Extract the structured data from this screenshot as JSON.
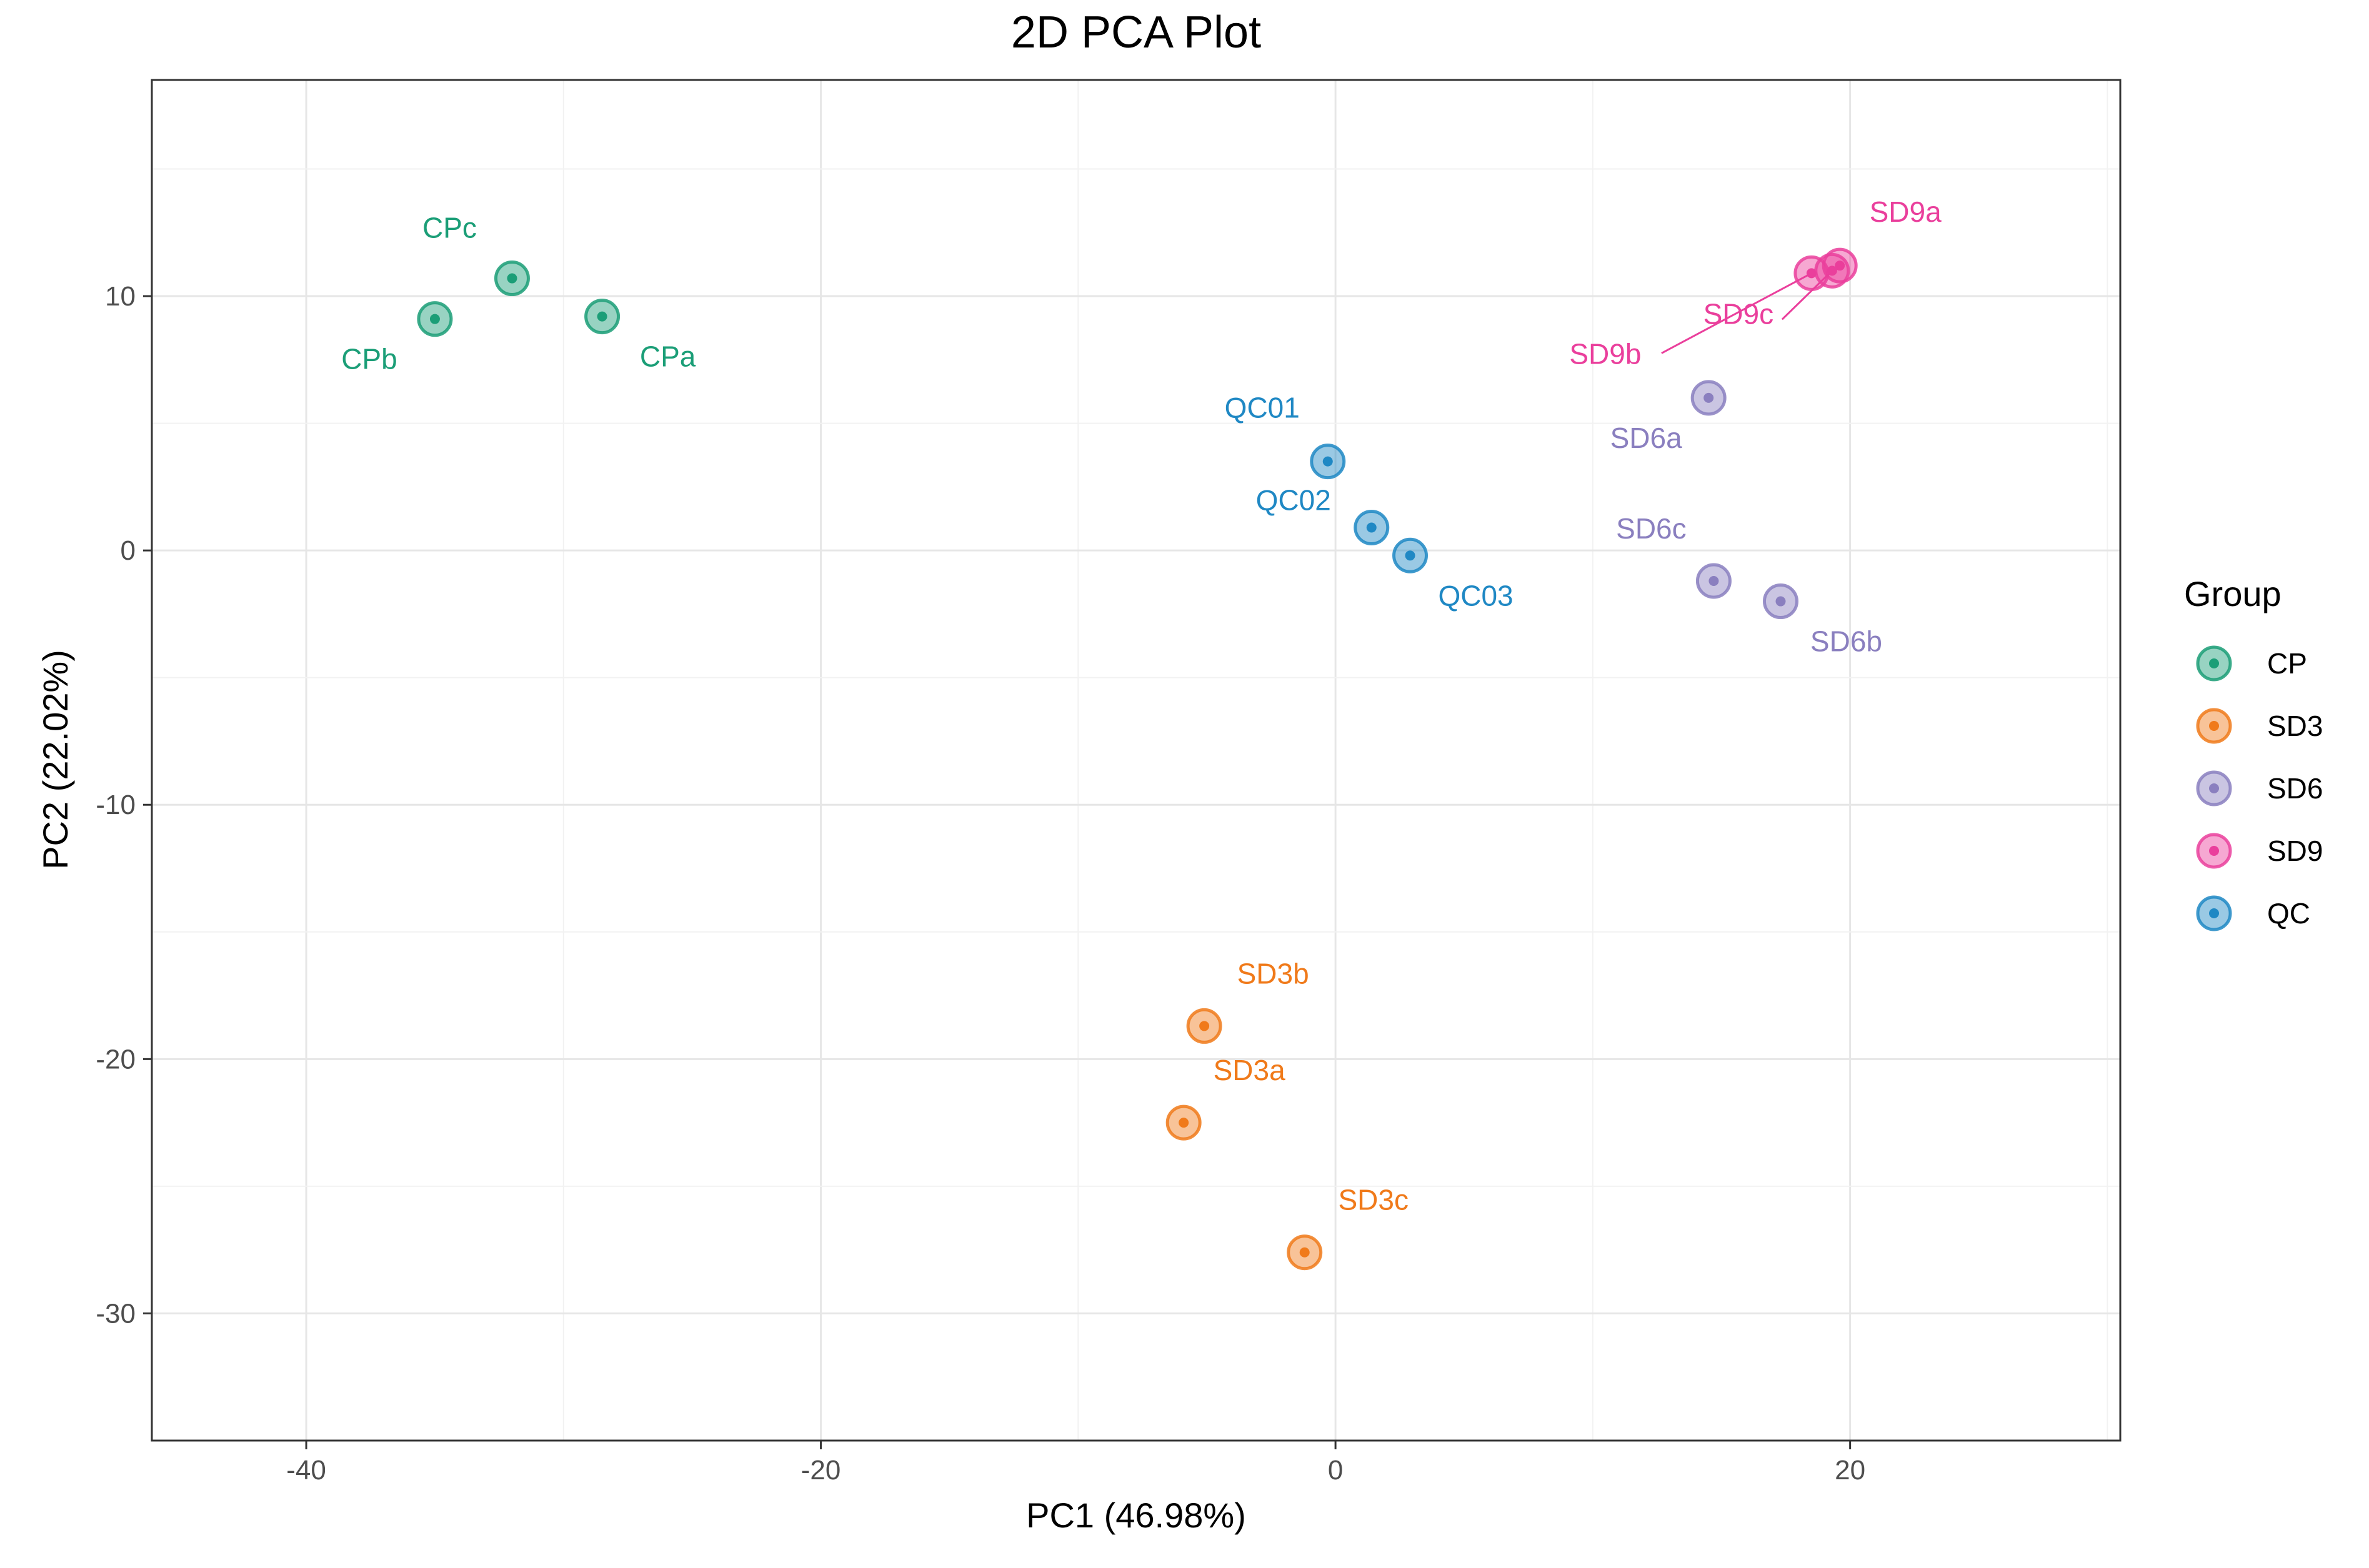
{
  "chart_data": {
    "type": "scatter",
    "title": "2D PCA Plot",
    "xlabel": "PC1 (46.98%)",
    "ylabel": "PC2 (22.02%)",
    "xlim": [
      -46,
      30.5
    ],
    "ylim": [
      -35,
      18.5
    ],
    "x_ticks": [
      -40,
      -20,
      0,
      20
    ],
    "y_ticks": [
      -30,
      -20,
      -10,
      0,
      10
    ],
    "x_tick_labels": [
      "-40",
      "-20",
      "0",
      "20"
    ],
    "y_tick_labels": [
      "-30",
      "-20",
      "-10",
      "0",
      "10"
    ],
    "grid": true,
    "legend": {
      "title": "Group",
      "position": "right"
    },
    "series": [
      {
        "name": "CP",
        "color": "#1b9e77",
        "points": [
          {
            "label": "CPa",
            "x": -28.5,
            "y": 9.2
          },
          {
            "label": "CPb",
            "x": -35.0,
            "y": 9.1
          },
          {
            "label": "CPc",
            "x": -32.0,
            "y": 10.7
          }
        ]
      },
      {
        "name": "SD3",
        "color": "#f07a1a",
        "points": [
          {
            "label": "SD3a",
            "x": -5.9,
            "y": -22.5
          },
          {
            "label": "SD3b",
            "x": -5.1,
            "y": -18.7
          },
          {
            "label": "SD3c",
            "x": -1.2,
            "y": -27.6
          }
        ]
      },
      {
        "name": "SD6",
        "color": "#8a7fbf",
        "points": [
          {
            "label": "SD6a",
            "x": 14.5,
            "y": 6.0
          },
          {
            "label": "SD6b",
            "x": 17.3,
            "y": -2.0
          },
          {
            "label": "SD6c",
            "x": 14.7,
            "y": -1.2
          }
        ]
      },
      {
        "name": "SD9",
        "color": "#ea3f9c",
        "points": [
          {
            "label": "SD9a",
            "x": 19.6,
            "y": 11.2
          },
          {
            "label": "SD9b",
            "x": 18.5,
            "y": 10.9
          },
          {
            "label": "SD9c",
            "x": 19.3,
            "y": 11.0
          }
        ]
      },
      {
        "name": "QC",
        "color": "#1f88c4",
        "points": [
          {
            "label": "QC01",
            "x": -0.3,
            "y": 3.5
          },
          {
            "label": "QC02",
            "x": 1.4,
            "y": 0.9
          },
          {
            "label": "QC03",
            "x": 2.9,
            "y": -0.2
          }
        ]
      }
    ]
  }
}
